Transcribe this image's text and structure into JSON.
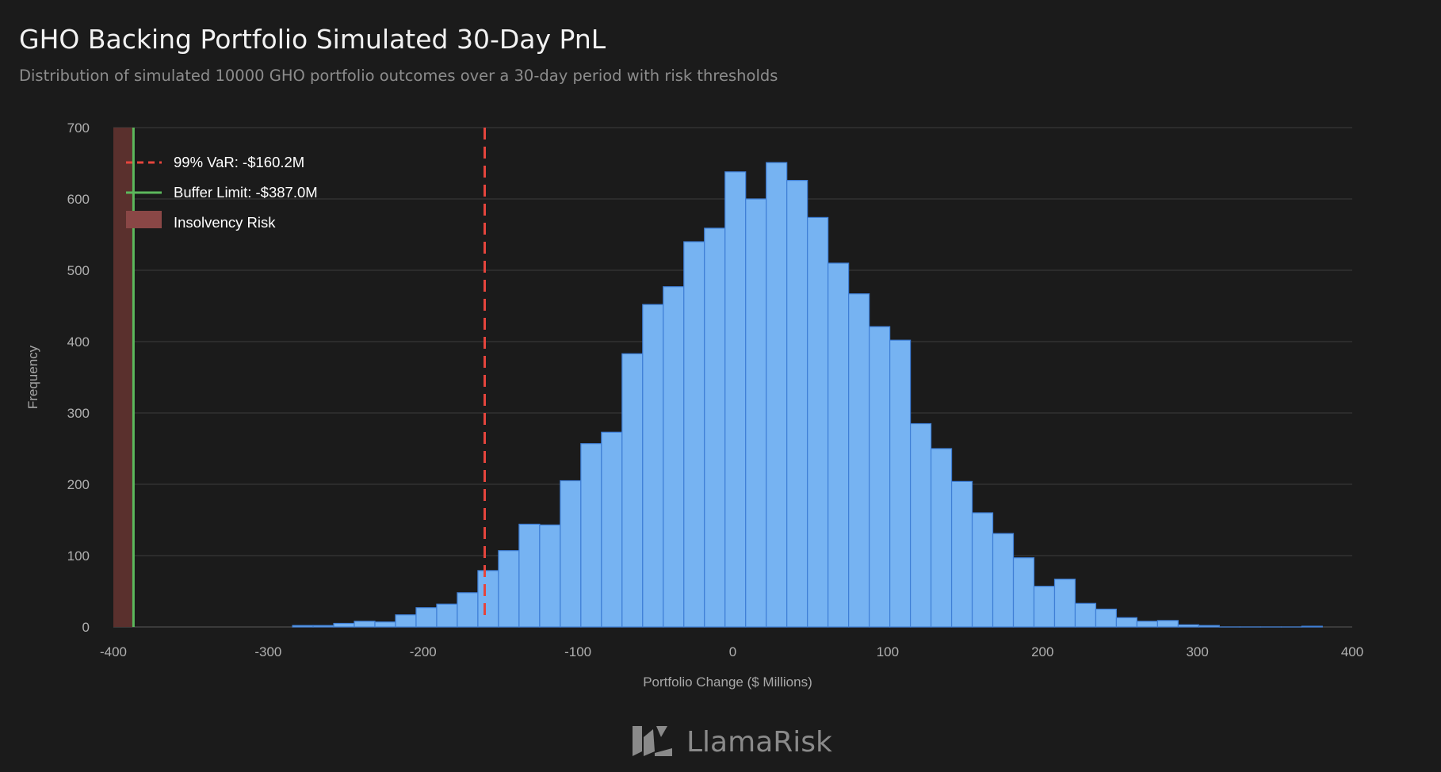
{
  "chart_data": {
    "type": "bar",
    "title": "GHO Backing Portfolio Simulated 30-Day PnL",
    "subtitle": "Distribution of simulated 10000 GHO portfolio outcomes over a 30-day period with risk thresholds",
    "xlabel": "Portfolio Change ($ Millions)",
    "ylabel": "Frequency",
    "xlim": [
      -400,
      400
    ],
    "ylim": [
      0,
      700
    ],
    "xticks": [
      "-400",
      "-300",
      "-200",
      "-100",
      "0",
      "100",
      "200",
      "300",
      "400"
    ],
    "yticks": [
      "0",
      "100",
      "200",
      "300",
      "400",
      "500",
      "600",
      "700"
    ],
    "grid": true,
    "legend_position": "top-left",
    "bin_start": -284.3,
    "bin_width": 13.3,
    "values": [
      2,
      2,
      5,
      8,
      7,
      17,
      27,
      32,
      48,
      79,
      107,
      144,
      143,
      205,
      257,
      273,
      383,
      452,
      477,
      540,
      559,
      638,
      600,
      651,
      626,
      574,
      510,
      467,
      421,
      402,
      285,
      250,
      204,
      160,
      131,
      97,
      57,
      67,
      33,
      25,
      13,
      8,
      9,
      3,
      2,
      0,
      0,
      0,
      0,
      1
    ],
    "var_line": {
      "x": -160.2,
      "label": "99% VaR: -$160.2M",
      "color": "#e5453d"
    },
    "buffer_line": {
      "x": -387.0,
      "label": "Buffer Limit: -$387.0M",
      "color": "#5cb85c"
    },
    "insolvency_region": {
      "x_from": -400,
      "x_to": -387.0,
      "label": "Insolvency Risk",
      "color": "#5a302d"
    },
    "bar_color": "#76b3f2",
    "bar_edge_color": "#3f7fd6"
  },
  "branding": {
    "logo_text": "LlamaRisk"
  }
}
